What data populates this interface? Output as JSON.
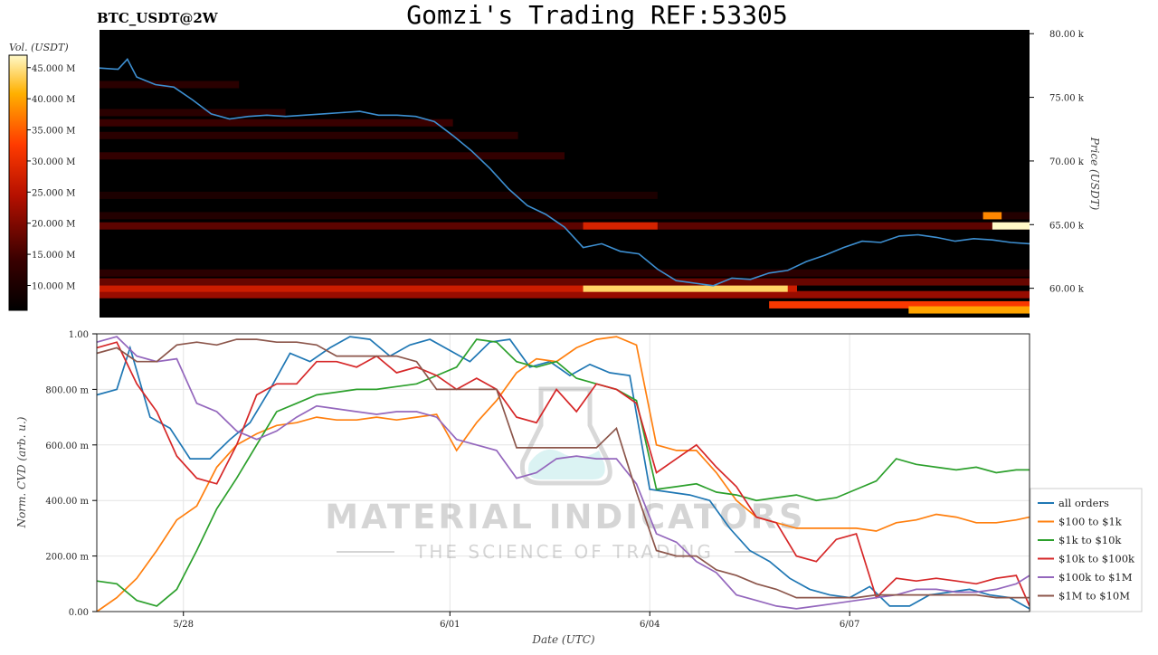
{
  "header": {
    "symbol": "BTC_USDT@2W",
    "title": "Gomzi's Trading REF:53305"
  },
  "watermark": {
    "line1": "MATERIAL INDICATORS",
    "line2": "THE SCIENCE OF TRADING"
  },
  "colors": {
    "all_orders": "#1f77b4",
    "100_1k": "#ff7f0e",
    "1k_10k": "#2ca02c",
    "10k_100k": "#d62728",
    "100k_1m": "#9467bd",
    "1m_10m": "#8c564b",
    "heatmap_bg": "#000000",
    "price_line": "#3d8fd1"
  },
  "chart_data": [
    {
      "type": "heatmap",
      "title": "",
      "colorbar_label": "Vol. (USDT)",
      "colorbar_ticks": [
        "10.000 M",
        "15.000 M",
        "20.000 M",
        "25.000 M",
        "30.000 M",
        "35.000 M",
        "40.000 M",
        "45.000 M"
      ],
      "colorbar_range": [
        6,
        47
      ],
      "ylabel": "Price (USDT)",
      "y_ticks": [
        "60.00 k",
        "65.00 k",
        "70.00 k",
        "75.00 k",
        "80.00 k"
      ],
      "y_tick_values": [
        60000,
        65000,
        70000,
        75000,
        80000
      ],
      "ylim": [
        57700,
        80300
      ],
      "xlim": [
        0,
        1
      ],
      "price_series": {
        "x": [
          0,
          0.02,
          0.03,
          0.04,
          0.06,
          0.08,
          0.1,
          0.12,
          0.14,
          0.16,
          0.18,
          0.2,
          0.22,
          0.24,
          0.26,
          0.28,
          0.3,
          0.32,
          0.34,
          0.36,
          0.38,
          0.4,
          0.42,
          0.44,
          0.46,
          0.48,
          0.5,
          0.52,
          0.54,
          0.56,
          0.58,
          0.6,
          0.62,
          0.64,
          0.66,
          0.68,
          0.7,
          0.72,
          0.74,
          0.76,
          0.78,
          0.8,
          0.82,
          0.84,
          0.86,
          0.88,
          0.9,
          0.92,
          0.94,
          0.96,
          0.98,
          1.0
        ],
        "y": [
          77300,
          77200,
          78000,
          76600,
          76000,
          75800,
          74800,
          73700,
          73300,
          73500,
          73600,
          73500,
          73600,
          73700,
          73800,
          73900,
          73600,
          73600,
          73500,
          73100,
          72000,
          70800,
          69400,
          67800,
          66500,
          65800,
          64800,
          63200,
          63500,
          62900,
          62700,
          61500,
          60600,
          60400,
          60200,
          60800,
          60700,
          61200,
          61400,
          62100,
          62600,
          63200,
          63700,
          63600,
          64100,
          64200,
          64000,
          63700,
          63900,
          63800,
          63600,
          63500
        ],
        "color": "#3d8fd1"
      },
      "liquidity_bands": [
        {
          "price": 58700,
          "x0": 0.72,
          "x1": 1.0,
          "level": 32
        },
        {
          "price": 58300,
          "x0": 0.87,
          "x1": 1.0,
          "level": 40
        },
        {
          "price": 59500,
          "x0": 0.0,
          "x1": 1.0,
          "level": 22
        },
        {
          "price": 60000,
          "x0": 0.0,
          "x1": 0.75,
          "level": 27
        },
        {
          "price": 60000,
          "x0": 0.52,
          "x1": 0.74,
          "level": 44
        },
        {
          "price": 60500,
          "x0": 0.0,
          "x1": 1.0,
          "level": 18
        },
        {
          "price": 61200,
          "x0": 0.0,
          "x1": 1.0,
          "level": 12
        },
        {
          "price": 64900,
          "x0": 0.0,
          "x1": 1.0,
          "level": 17
        },
        {
          "price": 64900,
          "x0": 0.52,
          "x1": 0.6,
          "level": 28
        },
        {
          "price": 64900,
          "x0": 0.96,
          "x1": 1.0,
          "level": 47
        },
        {
          "price": 65700,
          "x0": 0.0,
          "x1": 1.0,
          "level": 11
        },
        {
          "price": 65700,
          "x0": 0.95,
          "x1": 0.97,
          "level": 38
        },
        {
          "price": 67300,
          "x0": 0.0,
          "x1": 0.6,
          "level": 10
        },
        {
          "price": 70400,
          "x0": 0.0,
          "x1": 0.5,
          "level": 13
        },
        {
          "price": 72000,
          "x0": 0.0,
          "x1": 0.45,
          "level": 12
        },
        {
          "price": 73000,
          "x0": 0.0,
          "x1": 0.38,
          "level": 14
        },
        {
          "price": 73800,
          "x0": 0.0,
          "x1": 0.2,
          "level": 12
        },
        {
          "price": 76000,
          "x0": 0.0,
          "x1": 0.15,
          "level": 12
        }
      ]
    },
    {
      "type": "line",
      "title": "",
      "xlabel": "Date (UTC)",
      "ylabel": "Norm. CVD (arb. u.)",
      "x_ticks": [
        "5/28",
        "6/01",
        "6/04",
        "6/07"
      ],
      "x_tick_values": [
        3.3,
        7.3,
        10.3,
        13.3
      ],
      "xlim": [
        2,
        16
      ],
      "y_ticks": [
        "0.00",
        "200.00 m",
        "400.00 m",
        "600.00 m",
        "800.00 m",
        "1.00"
      ],
      "y_tick_values": [
        0,
        0.2,
        0.4,
        0.6,
        0.8,
        1.0
      ],
      "ylim": [
        0,
        1.0
      ],
      "grid": true,
      "legend_position": "right",
      "series": [
        {
          "name": "all orders",
          "color_key": "all_orders",
          "x": [
            2,
            2.3,
            2.5,
            2.8,
            3.1,
            3.4,
            3.7,
            4,
            4.3,
            4.6,
            4.9,
            5.2,
            5.5,
            5.8,
            6.1,
            6.4,
            6.7,
            7,
            7.3,
            7.6,
            7.9,
            8.2,
            8.5,
            8.8,
            9.1,
            9.4,
            9.7,
            10,
            10.3,
            10.6,
            10.9,
            11.2,
            11.5,
            11.8,
            12.1,
            12.4,
            12.7,
            13,
            13.3,
            13.6,
            13.9,
            14.2,
            14.5,
            14.8,
            15.1,
            15.4,
            15.7,
            16
          ],
          "y": [
            0.78,
            0.8,
            0.95,
            0.7,
            0.66,
            0.55,
            0.55,
            0.62,
            0.68,
            0.8,
            0.93,
            0.9,
            0.95,
            0.99,
            0.98,
            0.92,
            0.96,
            0.98,
            0.94,
            0.9,
            0.97,
            0.98,
            0.88,
            0.9,
            0.85,
            0.89,
            0.86,
            0.85,
            0.44,
            0.43,
            0.42,
            0.4,
            0.3,
            0.22,
            0.18,
            0.12,
            0.08,
            0.06,
            0.05,
            0.09,
            0.02,
            0.02,
            0.06,
            0.07,
            0.08,
            0.06,
            0.05,
            0.01
          ]
        },
        {
          "name": "$100 to $1k",
          "color_key": "100_1k",
          "x": [
            2,
            2.3,
            2.6,
            2.9,
            3.2,
            3.5,
            3.8,
            4.1,
            4.4,
            4.7,
            5,
            5.3,
            5.6,
            5.9,
            6.2,
            6.5,
            6.8,
            7.1,
            7.4,
            7.7,
            8,
            8.3,
            8.6,
            8.9,
            9.2,
            9.5,
            9.8,
            10.1,
            10.4,
            10.7,
            11,
            11.3,
            11.6,
            11.9,
            12.2,
            12.5,
            12.8,
            13.1,
            13.4,
            13.7,
            14,
            14.3,
            14.6,
            14.9,
            15.2,
            15.5,
            15.8,
            16
          ],
          "y": [
            0.0,
            0.05,
            0.12,
            0.22,
            0.33,
            0.38,
            0.52,
            0.6,
            0.64,
            0.67,
            0.68,
            0.7,
            0.69,
            0.69,
            0.7,
            0.69,
            0.7,
            0.71,
            0.58,
            0.68,
            0.76,
            0.86,
            0.91,
            0.9,
            0.95,
            0.98,
            0.99,
            0.96,
            0.6,
            0.58,
            0.58,
            0.5,
            0.4,
            0.34,
            0.32,
            0.3,
            0.3,
            0.3,
            0.3,
            0.29,
            0.32,
            0.33,
            0.35,
            0.34,
            0.32,
            0.32,
            0.33,
            0.34
          ]
        },
        {
          "name": "$1k to $10k",
          "color_key": "1k_10k",
          "x": [
            2,
            2.3,
            2.6,
            2.9,
            3.2,
            3.5,
            3.8,
            4.1,
            4.4,
            4.7,
            5,
            5.3,
            5.6,
            5.9,
            6.2,
            6.5,
            6.8,
            7.1,
            7.4,
            7.7,
            8,
            8.3,
            8.6,
            8.9,
            9.2,
            9.5,
            9.8,
            10.1,
            10.4,
            10.7,
            11,
            11.3,
            11.6,
            11.9,
            12.2,
            12.5,
            12.8,
            13.1,
            13.4,
            13.7,
            14,
            14.3,
            14.6,
            14.9,
            15.2,
            15.5,
            15.8,
            16
          ],
          "y": [
            0.11,
            0.1,
            0.04,
            0.02,
            0.08,
            0.22,
            0.37,
            0.48,
            0.6,
            0.72,
            0.75,
            0.78,
            0.79,
            0.8,
            0.8,
            0.81,
            0.82,
            0.85,
            0.88,
            0.98,
            0.97,
            0.9,
            0.88,
            0.9,
            0.84,
            0.82,
            0.8,
            0.76,
            0.44,
            0.45,
            0.46,
            0.43,
            0.42,
            0.4,
            0.41,
            0.42,
            0.4,
            0.41,
            0.44,
            0.47,
            0.55,
            0.53,
            0.52,
            0.51,
            0.52,
            0.5,
            0.51,
            0.51
          ]
        },
        {
          "name": "$10k to $100k",
          "color_key": "10k_100k",
          "x": [
            2,
            2.3,
            2.6,
            2.9,
            3.2,
            3.5,
            3.8,
            4.1,
            4.4,
            4.7,
            5,
            5.3,
            5.6,
            5.9,
            6.2,
            6.5,
            6.8,
            7.1,
            7.4,
            7.7,
            8,
            8.3,
            8.6,
            8.9,
            9.2,
            9.5,
            9.8,
            10.1,
            10.4,
            10.7,
            11,
            11.3,
            11.6,
            11.9,
            12.2,
            12.5,
            12.8,
            13.1,
            13.4,
            13.7,
            14,
            14.3,
            14.6,
            14.9,
            15.2,
            15.5,
            15.8,
            16
          ],
          "y": [
            0.95,
            0.97,
            0.82,
            0.72,
            0.56,
            0.48,
            0.46,
            0.6,
            0.78,
            0.82,
            0.82,
            0.9,
            0.9,
            0.88,
            0.92,
            0.86,
            0.88,
            0.85,
            0.8,
            0.84,
            0.8,
            0.7,
            0.68,
            0.8,
            0.72,
            0.82,
            0.8,
            0.75,
            0.5,
            0.55,
            0.6,
            0.52,
            0.45,
            0.34,
            0.32,
            0.2,
            0.18,
            0.26,
            0.28,
            0.05,
            0.12,
            0.11,
            0.12,
            0.11,
            0.1,
            0.12,
            0.13,
            0.02
          ]
        },
        {
          "name": "$100k to $1M",
          "color_key": "100k_1m",
          "x": [
            2,
            2.3,
            2.6,
            2.9,
            3.2,
            3.5,
            3.8,
            4.1,
            4.4,
            4.7,
            5,
            5.3,
            5.6,
            5.9,
            6.2,
            6.5,
            6.8,
            7.1,
            7.4,
            7.7,
            8,
            8.3,
            8.6,
            8.9,
            9.2,
            9.5,
            9.8,
            10.1,
            10.4,
            10.7,
            11,
            11.3,
            11.6,
            11.9,
            12.2,
            12.5,
            12.8,
            13.1,
            13.4,
            13.7,
            14,
            14.3,
            14.6,
            14.9,
            15.2,
            15.5,
            15.8,
            16
          ],
          "y": [
            0.97,
            0.99,
            0.92,
            0.9,
            0.91,
            0.75,
            0.72,
            0.65,
            0.62,
            0.65,
            0.7,
            0.74,
            0.73,
            0.72,
            0.71,
            0.72,
            0.72,
            0.7,
            0.62,
            0.6,
            0.58,
            0.48,
            0.5,
            0.55,
            0.56,
            0.55,
            0.55,
            0.46,
            0.28,
            0.25,
            0.18,
            0.14,
            0.06,
            0.04,
            0.02,
            0.01,
            0.02,
            0.03,
            0.04,
            0.05,
            0.06,
            0.08,
            0.08,
            0.07,
            0.07,
            0.08,
            0.1,
            0.13
          ]
        },
        {
          "name": "$1M to $10M",
          "color_key": "1m_10m",
          "x": [
            2,
            2.3,
            2.6,
            2.9,
            3.2,
            3.5,
            3.8,
            4.1,
            4.4,
            4.7,
            5,
            5.3,
            5.6,
            5.9,
            6.2,
            6.5,
            6.8,
            7.1,
            7.4,
            7.7,
            8,
            8.3,
            8.6,
            8.9,
            9.2,
            9.5,
            9.8,
            10.1,
            10.4,
            10.7,
            11,
            11.3,
            11.6,
            11.9,
            12.2,
            12.5,
            12.8,
            13.1,
            13.4,
            13.7,
            14,
            14.3,
            14.6,
            14.9,
            15.2,
            15.5,
            15.8,
            16
          ],
          "y": [
            0.93,
            0.95,
            0.9,
            0.9,
            0.96,
            0.97,
            0.96,
            0.98,
            0.98,
            0.97,
            0.97,
            0.96,
            0.92,
            0.92,
            0.92,
            0.92,
            0.9,
            0.8,
            0.8,
            0.8,
            0.8,
            0.59,
            0.59,
            0.59,
            0.59,
            0.59,
            0.66,
            0.43,
            0.22,
            0.2,
            0.2,
            0.15,
            0.13,
            0.1,
            0.08,
            0.05,
            0.05,
            0.05,
            0.05,
            0.06,
            0.06,
            0.06,
            0.06,
            0.06,
            0.06,
            0.05,
            0.05,
            0.05
          ]
        }
      ]
    }
  ]
}
